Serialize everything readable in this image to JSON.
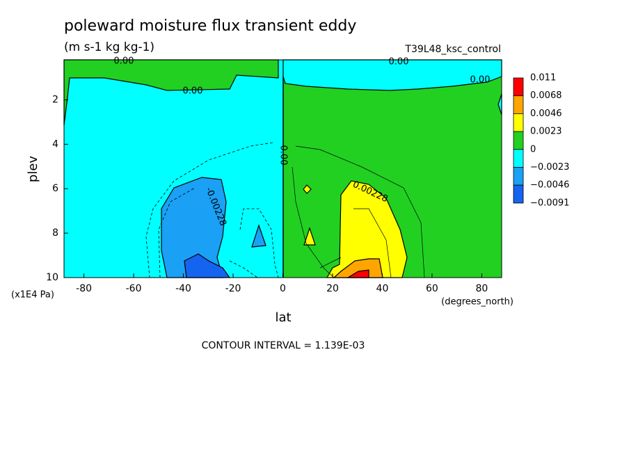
{
  "chart_data": {
    "type": "contour",
    "title": "poleward moisture flux transient eddy",
    "subtitle": "(m s-1 kg kg-1)",
    "run_label": "T39L48_ksc_control",
    "xlabel": "lat",
    "x_units_label": "(degrees_north)",
    "ylabel": "plev",
    "y_units_label": "(x1E4 Pa)",
    "xlim": [
      -88,
      88
    ],
    "xticks": [
      -80,
      -60,
      -40,
      -20,
      0,
      20,
      40,
      60,
      80
    ],
    "ylim": [
      10,
      0.2
    ],
    "yticks": [
      2,
      4,
      6,
      8,
      10
    ],
    "colorbar": {
      "levels": [
        0.011,
        0.0068,
        0.0046,
        0.0023,
        0,
        {
          "value": -0.0023,
          "label": "−0.0023"
        },
        {
          "value": -0.0046,
          "label": "−0.0046"
        },
        {
          "value": -0.0091,
          "label": "−0.0091"
        }
      ],
      "colors": [
        "#ff0000",
        "#ffa500",
        "#ffff00",
        "#22d022",
        "#00ffff",
        "#1aa0f5",
        "#1464f0"
      ]
    },
    "contour_labels": [
      "0.00",
      "0.00",
      "0.00",
      "0.00",
      "0.00",
      "-0.00228",
      "0.00228"
    ],
    "annotation": "CONTOUR INTERVAL = 1.139E-03"
  }
}
